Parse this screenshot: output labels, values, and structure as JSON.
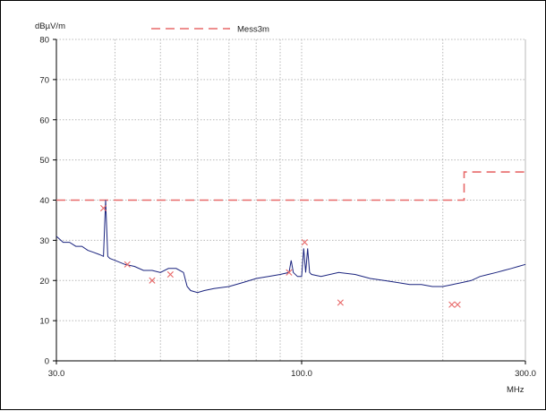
{
  "chart_data": {
    "type": "line",
    "ylabel": "dBµV/m",
    "xlabel": "MHz",
    "x_scale": "log",
    "xlim": [
      30,
      300
    ],
    "ylim": [
      0,
      80
    ],
    "y_ticks": [
      0,
      10,
      20,
      30,
      40,
      50,
      60,
      70,
      80
    ],
    "x_tick_labels": [
      {
        "x": 30,
        "label": "30.0"
      },
      {
        "x": 100,
        "label": "100.0"
      },
      {
        "x": 300,
        "label": "300.0"
      }
    ],
    "x_gridlines": [
      40,
      50,
      60,
      70,
      80,
      90,
      100,
      200,
      300
    ],
    "grid": true,
    "legend": {
      "placement": "top",
      "entries": [
        "Mess3m"
      ]
    },
    "colors": {
      "limit": "#e86a6a",
      "trace": "#1a237e",
      "markers": "#e86a6a",
      "grid": "#b8b8b8"
    },
    "series": [
      {
        "name": "Mess3m",
        "style": "dashed",
        "x": [
          30,
          222,
          222,
          300
        ],
        "values": [
          40,
          40,
          47,
          47
        ]
      },
      {
        "style": "solid",
        "x": [
          30,
          31,
          32,
          33,
          34,
          35,
          36,
          37,
          37.8,
          38.2,
          38.6,
          39,
          40,
          42,
          44,
          46,
          48,
          50,
          52,
          54,
          56,
          57,
          58,
          60,
          62,
          65,
          70,
          75,
          80,
          85,
          90,
          94,
          95,
          96,
          98,
          100,
          101,
          102,
          103,
          104,
          105,
          110,
          120,
          130,
          140,
          150,
          160,
          170,
          180,
          190,
          200,
          210,
          220,
          230,
          240,
          250,
          260,
          270,
          280,
          290,
          300
        ],
        "values": [
          31,
          29.5,
          29.5,
          28.5,
          28.5,
          27.5,
          27,
          26.5,
          26,
          40,
          26,
          25.5,
          25,
          24,
          23.5,
          22.5,
          22.5,
          22,
          23,
          23,
          22,
          18.5,
          17.5,
          17,
          17.5,
          18,
          18.5,
          19.5,
          20.5,
          21,
          21.5,
          22,
          25,
          22,
          21,
          21,
          28,
          22,
          28,
          22,
          21.5,
          21,
          22,
          21.5,
          20.5,
          20,
          19.5,
          19,
          19,
          18.5,
          18.5,
          19,
          19.5,
          20,
          21,
          21.5,
          22,
          22.5,
          23,
          23.5,
          24
        ]
      },
      {
        "style": "markers",
        "x": [
          37.8,
          42.5,
          48,
          52.5,
          94,
          101.5,
          121,
          209,
          215
        ],
        "values": [
          38,
          24,
          20,
          21.5,
          22,
          29.5,
          14.5,
          14,
          14
        ]
      }
    ]
  }
}
